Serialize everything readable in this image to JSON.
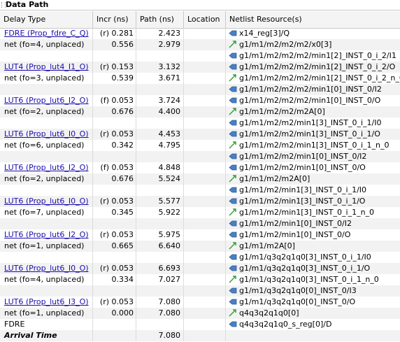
{
  "panel": {
    "title": "Data Path"
  },
  "columns": [
    "Delay Type",
    "Incr (ns)",
    "Path (ns)",
    "Location",
    "Netlist Resource(s)"
  ],
  "rows": [
    {
      "delay": "FDRE (Prop_fdre_C_Q)",
      "delay_kind": "link",
      "incr": "(r) 0.281",
      "path": "2.423",
      "loc": "",
      "res": "x14_reg[3]/Q",
      "icon": "pin-icon"
    },
    {
      "delay": "net (fo=4, unplaced)",
      "delay_kind": "net",
      "incr": "0.556",
      "path": "2.979",
      "loc": "",
      "res": "g1/m1/m2/m2/m2/x0[3]",
      "icon": "net-icon"
    },
    {
      "delay": "",
      "delay_kind": "empty",
      "incr": "",
      "path": "",
      "loc": "",
      "res": "g1/m1/m2/m2/m2/min1[2]_INST_0_i_2/I1",
      "icon": "pin-icon"
    },
    {
      "delay": "LUT4 (Prop_lut4_I1_O)",
      "delay_kind": "link",
      "incr": "(r) 0.153",
      "path": "3.132",
      "loc": "",
      "res": "g1/m1/m2/m2/m2/min1[2]_INST_0_i_2/O",
      "icon": "pin-icon"
    },
    {
      "delay": "net (fo=3, unplaced)",
      "delay_kind": "net",
      "incr": "0.539",
      "path": "3.671",
      "loc": "",
      "res": "g1/m1/m2/m2/m2/min1[2]_INST_0_i_2_n_0",
      "icon": "net-icon"
    },
    {
      "delay": "",
      "delay_kind": "empty",
      "incr": "",
      "path": "",
      "loc": "",
      "res": "g1/m1/m2/m2/m2/min1[0]_INST_0/I2",
      "icon": "pin-icon"
    },
    {
      "delay": "LUT6 (Prop_lut6_I2_O)",
      "delay_kind": "link",
      "incr": "(f) 0.053",
      "path": "3.724",
      "loc": "",
      "res": "g1/m1/m2/m2/m2/min1[0]_INST_0/O",
      "icon": "pin-icon"
    },
    {
      "delay": "net (fo=2, unplaced)",
      "delay_kind": "net",
      "incr": "0.676",
      "path": "4.400",
      "loc": "",
      "res": "g1/m1/m2/m2/m2A[0]",
      "icon": "net-icon"
    },
    {
      "delay": "",
      "delay_kind": "empty",
      "incr": "",
      "path": "",
      "loc": "",
      "res": "g1/m1/m2/m2/min1[3]_INST_0_i_1/I0",
      "icon": "pin-icon"
    },
    {
      "delay": "LUT6 (Prop_lut6_I0_O)",
      "delay_kind": "link",
      "incr": "(r) 0.053",
      "path": "4.453",
      "loc": "",
      "res": "g1/m1/m2/m2/min1[3]_INST_0_i_1/O",
      "icon": "pin-icon"
    },
    {
      "delay": "net (fo=6, unplaced)",
      "delay_kind": "net",
      "incr": "0.342",
      "path": "4.795",
      "loc": "",
      "res": "g1/m1/m2/m2/min1[3]_INST_0_i_1_n_0",
      "icon": "net-icon"
    },
    {
      "delay": "",
      "delay_kind": "empty",
      "incr": "",
      "path": "",
      "loc": "",
      "res": "g1/m1/m2/m2/min1[0]_INST_0/I2",
      "icon": "pin-icon"
    },
    {
      "delay": "LUT6 (Prop_lut6_I2_O)",
      "delay_kind": "link",
      "incr": "(f) 0.053",
      "path": "4.848",
      "loc": "",
      "res": "g1/m1/m2/m2/min1[0]_INST_0/O",
      "icon": "pin-icon"
    },
    {
      "delay": "net (fo=2, unplaced)",
      "delay_kind": "net",
      "incr": "0.676",
      "path": "5.524",
      "loc": "",
      "res": "g1/m1/m2/m2A[0]",
      "icon": "net-icon"
    },
    {
      "delay": "",
      "delay_kind": "empty",
      "incr": "",
      "path": "",
      "loc": "",
      "res": "g1/m1/m2/min1[3]_INST_0_i_1/I0",
      "icon": "pin-icon"
    },
    {
      "delay": "LUT6 (Prop_lut6_I0_O)",
      "delay_kind": "link",
      "incr": "(r) 0.053",
      "path": "5.577",
      "loc": "",
      "res": "g1/m1/m2/min1[3]_INST_0_i_1/O",
      "icon": "pin-icon"
    },
    {
      "delay": "net (fo=7, unplaced)",
      "delay_kind": "net",
      "incr": "0.345",
      "path": "5.922",
      "loc": "",
      "res": "g1/m1/m2/min1[3]_INST_0_i_1_n_0",
      "icon": "net-icon"
    },
    {
      "delay": "",
      "delay_kind": "empty",
      "incr": "",
      "path": "",
      "loc": "",
      "res": "g1/m1/m2/min1[0]_INST_0/I2",
      "icon": "pin-icon"
    },
    {
      "delay": "LUT6 (Prop_lut6_I2_O)",
      "delay_kind": "link",
      "incr": "(r) 0.053",
      "path": "5.975",
      "loc": "",
      "res": "g1/m1/m2/min1[0]_INST_0/O",
      "icon": "pin-icon"
    },
    {
      "delay": "net (fo=1, unplaced)",
      "delay_kind": "net",
      "incr": "0.665",
      "path": "6.640",
      "loc": "",
      "res": "g1/m1/m2A[0]",
      "icon": "net-icon"
    },
    {
      "delay": "",
      "delay_kind": "empty",
      "incr": "",
      "path": "",
      "loc": "",
      "res": "g1/m1/q3q2q1q0[3]_INST_0_i_1/I0",
      "icon": "pin-icon"
    },
    {
      "delay": "LUT6 (Prop_lut6_I0_O)",
      "delay_kind": "link",
      "incr": "(r) 0.053",
      "path": "6.693",
      "loc": "",
      "res": "g1/m1/q3q2q1q0[3]_INST_0_i_1/O",
      "icon": "pin-icon"
    },
    {
      "delay": "net (fo=4, unplaced)",
      "delay_kind": "net",
      "incr": "0.334",
      "path": "7.027",
      "loc": "",
      "res": "g1/m1/q3q2q1q0[3]_INST_0_i_1_n_0",
      "icon": "net-icon"
    },
    {
      "delay": "",
      "delay_kind": "empty",
      "incr": "",
      "path": "",
      "loc": "",
      "res": "g1/m1/q3q2q1q0[0]_INST_0/I3",
      "icon": "pin-icon"
    },
    {
      "delay": "LUT6 (Prop_lut6_I3_O)",
      "delay_kind": "link",
      "incr": "(r) 0.053",
      "path": "7.080",
      "loc": "",
      "res": "g1/m1/q3q2q1q0[0]_INST_0/O",
      "icon": "pin-icon"
    },
    {
      "delay": "net (fo=1, unplaced)",
      "delay_kind": "net",
      "incr": "0.000",
      "path": "7.080",
      "loc": "",
      "res": "q4q3q2q1q0[0]",
      "icon": "net-icon"
    },
    {
      "delay": "FDRE",
      "delay_kind": "plain",
      "incr": "",
      "path": "",
      "loc": "",
      "res": "q4q3q2q1q0_s_reg[0]/D",
      "icon": "pin-icon"
    },
    {
      "delay": "Arrival Time",
      "delay_kind": "bold",
      "incr": "",
      "path": "7.080",
      "loc": "",
      "res": "",
      "icon": ""
    }
  ],
  "colors": {
    "pin_icon": "#4a7fc1",
    "net_icon": "#2e9e2e",
    "link": "#1a0dab",
    "alt_row": "#f2f2f2"
  }
}
